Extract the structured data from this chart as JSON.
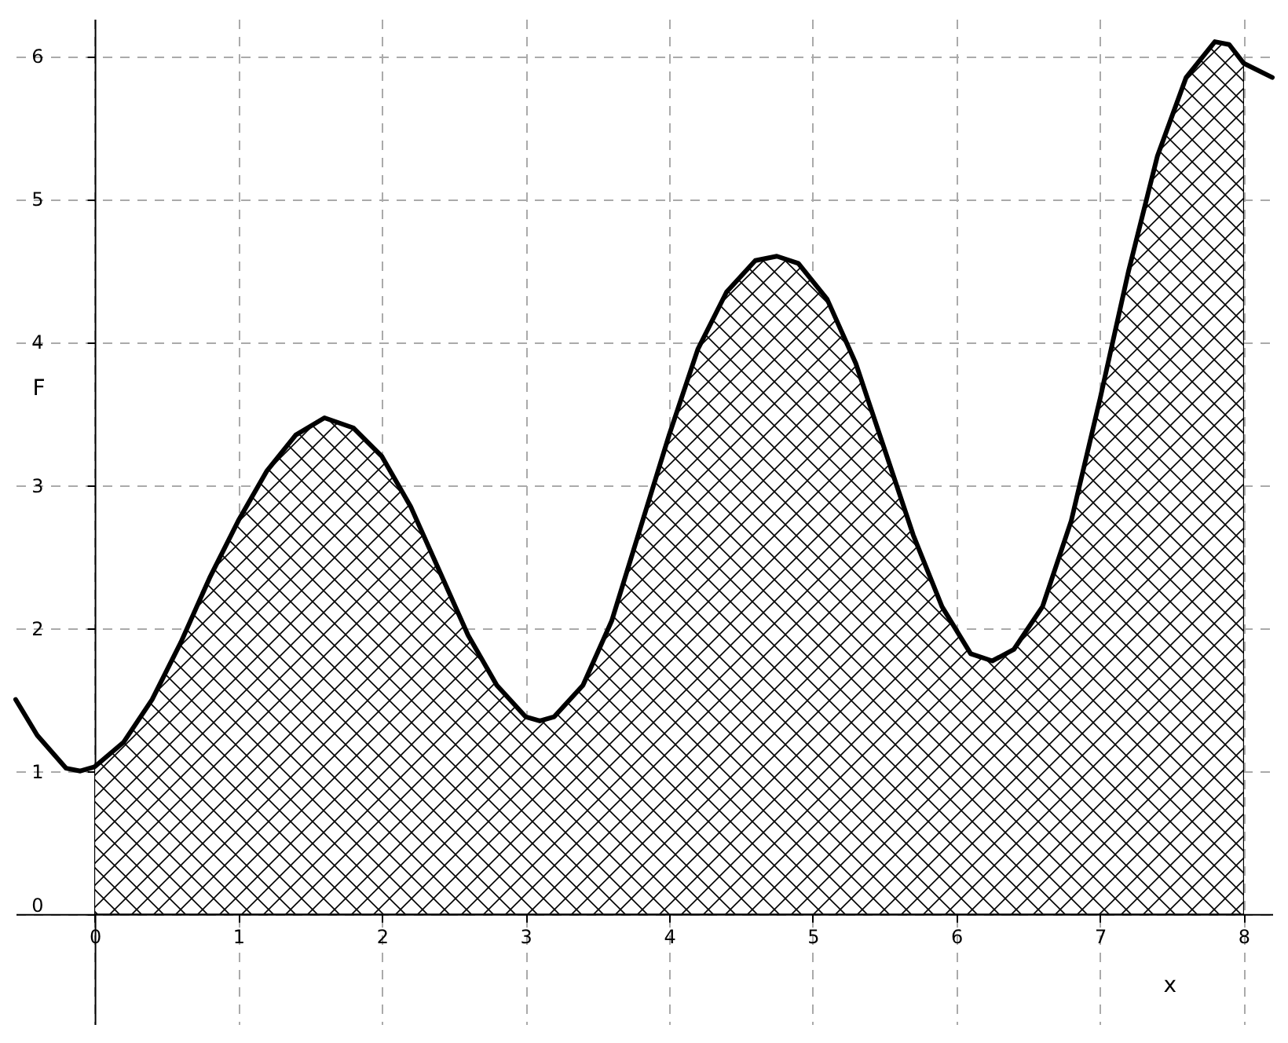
{
  "chart_data": {
    "type": "line",
    "xlabel": "x",
    "ylabel": "F",
    "xlim": [
      -0.55,
      8.2
    ],
    "ylim": [
      -0.77,
      6.26
    ],
    "xticks": [
      0,
      1,
      2,
      3,
      4,
      5,
      6,
      7,
      8
    ],
    "yticks": [
      0,
      1,
      2,
      3,
      4,
      5,
      6
    ],
    "grid": true,
    "line_style": "solid",
    "marker": "none",
    "series": [
      {
        "type": "area",
        "color": "#000000",
        "x": [
          0,
          0.2,
          0.4,
          0.6,
          0.8,
          1.0,
          1.2,
          1.4,
          1.6,
          1.8,
          2.0,
          2.2,
          2.4,
          2.6,
          2.8,
          3.0,
          3.1,
          3.2,
          3.4,
          3.6,
          3.8,
          4.0,
          4.2,
          4.4,
          4.6,
          4.75,
          4.9,
          5.1,
          5.3,
          5.5,
          5.7,
          5.9,
          6.1,
          6.25,
          6.4,
          6.6,
          6.8,
          7.0,
          7.2,
          7.4,
          7.6,
          7.8,
          7.9,
          8.0
        ],
        "values": [
          1.03,
          1.2,
          1.5,
          1.9,
          2.35,
          2.75,
          3.1,
          3.35,
          3.47,
          3.4,
          3.2,
          2.85,
          2.4,
          1.95,
          1.6,
          1.38,
          1.35,
          1.38,
          1.6,
          2.05,
          2.7,
          3.35,
          3.95,
          4.35,
          4.57,
          4.6,
          4.55,
          4.3,
          3.85,
          3.25,
          2.65,
          2.15,
          1.82,
          1.77,
          1.85,
          2.15,
          2.75,
          3.6,
          4.5,
          5.3,
          5.85,
          6.1,
          6.08,
          5.95
        ]
      },
      {
        "color": "#000000",
        "x": [
          -0.55,
          -0.4,
          -0.2,
          -0.1,
          0,
          0.2,
          0.4,
          0.6,
          0.8,
          1.0,
          1.2,
          1.4,
          1.6,
          1.8,
          2.0,
          2.2,
          2.4,
          2.6,
          2.8,
          3.0,
          3.1,
          3.2,
          3.4,
          3.6,
          3.8,
          4.0,
          4.2,
          4.4,
          4.6,
          4.75,
          4.9,
          5.1,
          5.3,
          5.5,
          5.7,
          5.9,
          6.1,
          6.25,
          6.4,
          6.6,
          6.8,
          7.0,
          7.2,
          7.4,
          7.6,
          7.8,
          7.9,
          8.0,
          8.2
        ],
        "values": [
          1.5,
          1.25,
          1.02,
          1.0,
          1.03,
          1.2,
          1.5,
          1.9,
          2.35,
          2.75,
          3.1,
          3.35,
          3.47,
          3.4,
          3.2,
          2.85,
          2.4,
          1.95,
          1.6,
          1.38,
          1.35,
          1.38,
          1.6,
          2.05,
          2.7,
          3.35,
          3.95,
          4.35,
          4.57,
          4.6,
          4.55,
          4.3,
          3.85,
          3.25,
          2.65,
          2.15,
          1.82,
          1.77,
          1.85,
          2.15,
          2.75,
          3.6,
          4.5,
          5.3,
          5.85,
          6.1,
          6.08,
          5.95,
          5.85
        ]
      }
    ]
  }
}
